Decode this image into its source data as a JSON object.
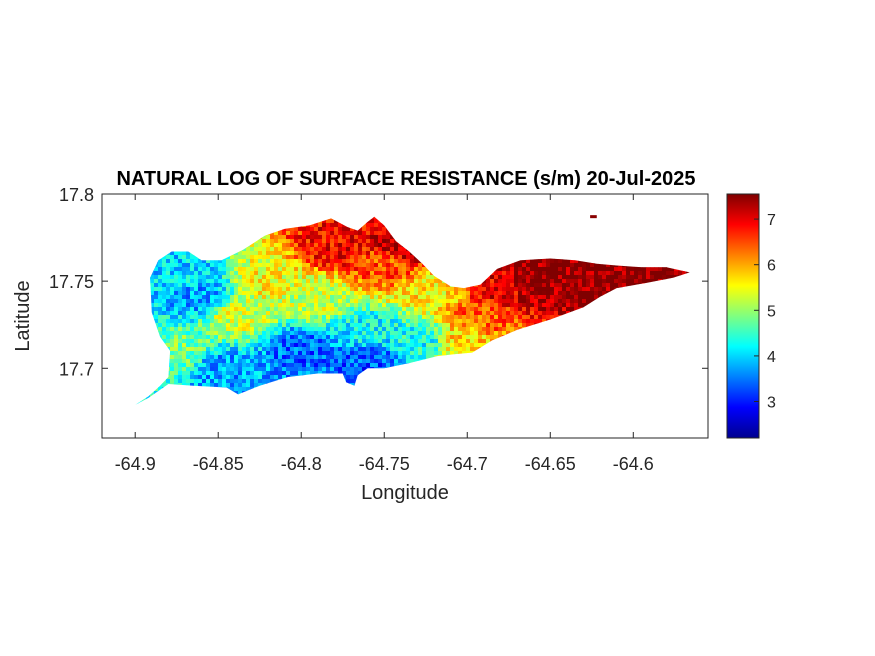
{
  "chart_data": {
    "type": "heatmap",
    "title": "NATURAL LOG OF SURFACE RESISTANCE (s/m) 20-Jul-2025",
    "xlabel": "Longitude",
    "ylabel": "Latitude",
    "xlim": [
      -64.92,
      -64.555
    ],
    "ylim": [
      17.66,
      17.8
    ],
    "x_ticks": [
      -64.9,
      -64.85,
      -64.8,
      -64.75,
      -64.7,
      -64.65,
      -64.6
    ],
    "x_tick_labels": [
      "-64.9",
      "-64.85",
      "-64.8",
      "-64.75",
      "-64.7",
      "-64.65",
      "-64.6"
    ],
    "y_ticks": [
      17.7,
      17.75,
      17.8
    ],
    "y_tick_labels": [
      "17.7",
      "17.75",
      "17.8"
    ],
    "colorbar": {
      "colormap": "jet",
      "range": [
        2.2,
        7.55
      ],
      "ticks": [
        3,
        4,
        5,
        6,
        7
      ],
      "tick_labels": [
        "3",
        "4",
        "5",
        "6",
        "7"
      ]
    },
    "grid": false,
    "island_outline": [
      [
        -64.9,
        17.679
      ],
      [
        -64.892,
        17.684
      ],
      [
        -64.885,
        17.69
      ],
      [
        -64.88,
        17.695
      ],
      [
        -64.879,
        17.71
      ],
      [
        -64.885,
        17.718
      ],
      [
        -64.89,
        17.732
      ],
      [
        -64.891,
        17.752
      ],
      [
        -64.886,
        17.762
      ],
      [
        -64.878,
        17.767
      ],
      [
        -64.868,
        17.767
      ],
      [
        -64.86,
        17.762
      ],
      [
        -64.848,
        17.762
      ],
      [
        -64.835,
        17.768
      ],
      [
        -64.822,
        17.776
      ],
      [
        -64.81,
        17.78
      ],
      [
        -64.795,
        17.782
      ],
      [
        -64.782,
        17.786
      ],
      [
        -64.772,
        17.781
      ],
      [
        -64.766,
        17.779
      ],
      [
        -64.76,
        17.784
      ],
      [
        -64.756,
        17.787
      ],
      [
        -64.75,
        17.782
      ],
      [
        -64.743,
        17.773
      ],
      [
        -64.735,
        17.767
      ],
      [
        -64.727,
        17.76
      ],
      [
        -64.72,
        17.753
      ],
      [
        -64.71,
        17.747
      ],
      [
        -64.702,
        17.746
      ],
      [
        -64.692,
        17.748
      ],
      [
        -64.682,
        17.757
      ],
      [
        -64.668,
        17.762
      ],
      [
        -64.65,
        17.763
      ],
      [
        -64.635,
        17.762
      ],
      [
        -64.622,
        17.76
      ],
      [
        -64.61,
        17.759
      ],
      [
        -64.595,
        17.758
      ],
      [
        -64.58,
        17.758
      ],
      [
        -64.566,
        17.755
      ],
      [
        -64.576,
        17.752
      ],
      [
        -64.592,
        17.749
      ],
      [
        -64.61,
        17.746
      ],
      [
        -64.62,
        17.741
      ],
      [
        -64.63,
        17.735
      ],
      [
        -64.65,
        17.728
      ],
      [
        -64.67,
        17.722
      ],
      [
        -64.685,
        17.716
      ],
      [
        -64.697,
        17.709
      ],
      [
        -64.708,
        17.708
      ],
      [
        -64.718,
        17.707
      ],
      [
        -64.735,
        17.703
      ],
      [
        -64.75,
        17.7
      ],
      [
        -64.76,
        17.7
      ],
      [
        -64.766,
        17.696
      ],
      [
        -64.768,
        17.69
      ],
      [
        -64.773,
        17.692
      ],
      [
        -64.775,
        17.697
      ],
      [
        -64.79,
        17.697
      ],
      [
        -64.808,
        17.695
      ],
      [
        -64.825,
        17.69
      ],
      [
        -64.838,
        17.685
      ],
      [
        -64.845,
        17.689
      ],
      [
        -64.865,
        17.69
      ],
      [
        -64.88,
        17.691
      ],
      [
        -64.892,
        17.683
      ],
      [
        -64.9,
        17.679
      ]
    ],
    "islet": {
      "lon": [
        -64.626,
        -64.622
      ],
      "lat": 17.787,
      "value": 7.5
    },
    "value_control_points": [
      {
        "lon": -64.86,
        "lat": 17.74,
        "value": 3.7
      },
      {
        "lon": -64.87,
        "lat": 17.755,
        "value": 4.0
      },
      {
        "lon": -64.87,
        "lat": 17.71,
        "value": 4.8
      },
      {
        "lon": -64.84,
        "lat": 17.73,
        "value": 5.3
      },
      {
        "lon": -64.85,
        "lat": 17.7,
        "value": 3.7
      },
      {
        "lon": -64.82,
        "lat": 17.75,
        "value": 5.5
      },
      {
        "lon": -64.8,
        "lat": 17.71,
        "value": 3.4
      },
      {
        "lon": -64.79,
        "lat": 17.74,
        "value": 5.2
      },
      {
        "lon": -64.78,
        "lat": 17.77,
        "value": 6.9
      },
      {
        "lon": -64.76,
        "lat": 17.705,
        "value": 3.3
      },
      {
        "lon": -64.76,
        "lat": 17.72,
        "value": 4.2
      },
      {
        "lon": -64.75,
        "lat": 17.76,
        "value": 6.5
      },
      {
        "lon": -64.73,
        "lat": 17.715,
        "value": 4.3
      },
      {
        "lon": -64.72,
        "lat": 17.745,
        "value": 5.6
      },
      {
        "lon": -64.74,
        "lat": 17.77,
        "value": 7.3
      },
      {
        "lon": -64.7,
        "lat": 17.715,
        "value": 5.8
      },
      {
        "lon": -64.69,
        "lat": 17.73,
        "value": 6.4
      },
      {
        "lon": -64.68,
        "lat": 17.745,
        "value": 7.0
      },
      {
        "lon": -64.66,
        "lat": 17.75,
        "value": 7.5
      },
      {
        "lon": -64.62,
        "lat": 17.75,
        "value": 7.5
      },
      {
        "lon": -64.58,
        "lat": 17.755,
        "value": 7.5
      }
    ]
  }
}
